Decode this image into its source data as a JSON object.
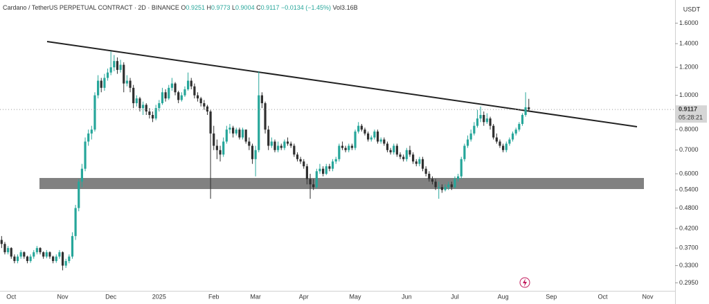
{
  "chart_data": {
    "type": "candlestick",
    "symbol": "Cardano / TetherUS PERPETUAL CONTRACT · 2D · BINANCE",
    "ohlc_keys": [
      "O",
      "H",
      "L",
      "C"
    ],
    "change_label": "−0.0134 (−1.45%)",
    "volume_label": "Vol3.16B",
    "countdown": "05:28:21",
    "axis_unit": "USDT",
    "log_scale": true,
    "grid": false,
    "up_color": "#26a69a",
    "down_color": "#2f2f2f",
    "ylim": [
      0.28,
      1.86
    ],
    "yticks": [
      {
        "value": 1.6,
        "label": "1.6000"
      },
      {
        "value": 1.4,
        "label": "1.4000"
      },
      {
        "value": 1.2,
        "label": "1.2000"
      },
      {
        "value": 1.0,
        "label": "1.0000"
      },
      {
        "value": 0.8,
        "label": "0.8000"
      },
      {
        "value": 0.7,
        "label": "0.7000"
      },
      {
        "value": 0.6,
        "label": "0.6000"
      },
      {
        "value": 0.54,
        "label": "0.5400"
      },
      {
        "value": 0.48,
        "label": "0.4800"
      },
      {
        "value": 0.42,
        "label": "0.4200"
      },
      {
        "value": 0.37,
        "label": "0.3700"
      },
      {
        "value": 0.33,
        "label": "0.3300"
      },
      {
        "value": 0.295,
        "label": "0.2950"
      }
    ],
    "categories": [
      null,
      null,
      null,
      "Oct",
      null,
      null,
      null,
      null,
      null,
      null,
      null,
      null,
      null,
      null,
      null,
      null,
      null,
      null,
      null,
      "Nov",
      null,
      null,
      null,
      null,
      null,
      null,
      null,
      null,
      null,
      null,
      null,
      null,
      null,
      null,
      "Dec",
      null,
      null,
      null,
      null,
      null,
      null,
      null,
      null,
      null,
      null,
      null,
      null,
      null,
      null,
      "2025",
      null,
      null,
      null,
      null,
      null,
      null,
      null,
      null,
      null,
      null,
      null,
      null,
      null,
      null,
      null,
      null,
      "Feb",
      null,
      null,
      null,
      null,
      null,
      null,
      null,
      null,
      null,
      null,
      null,
      null,
      "Mar",
      null,
      null,
      null,
      null,
      null,
      null,
      null,
      null,
      null,
      null,
      null,
      null,
      null,
      null,
      "Apr",
      null,
      null,
      null,
      null,
      null,
      null,
      null,
      null,
      null,
      null,
      null,
      null,
      null,
      null,
      null,
      "May",
      null,
      null,
      null,
      null,
      null,
      null,
      null,
      null,
      null,
      null,
      null,
      null,
      null,
      null,
      null,
      "Jun",
      null,
      null,
      null,
      null,
      null,
      null,
      null,
      null,
      null,
      null,
      null,
      null,
      null,
      null,
      "Jul",
      null,
      null,
      null,
      null,
      null,
      null,
      null,
      null,
      null,
      null,
      null,
      null,
      null,
      null,
      "Aug",
      null,
      null,
      null,
      null,
      null,
      null,
      null,
      null,
      null,
      null,
      null,
      null,
      null,
      null,
      "Sep",
      null,
      null,
      null,
      null,
      null,
      null,
      null,
      null,
      null,
      null,
      null,
      null,
      null,
      null,
      null,
      "Oct",
      null,
      null,
      null,
      null,
      null,
      null,
      null,
      null,
      null,
      null,
      null,
      null,
      null,
      "Nov",
      null,
      null,
      null,
      null,
      null,
      null,
      null,
      null
    ],
    "candles": [
      [
        0.39,
        0.4,
        0.37,
        0.38
      ],
      [
        0.38,
        0.385,
        0.355,
        0.36
      ],
      [
        0.36,
        0.375,
        0.355,
        0.37
      ],
      [
        0.37,
        0.372,
        0.345,
        0.35
      ],
      [
        0.35,
        0.355,
        0.335,
        0.34
      ],
      [
        0.34,
        0.355,
        0.335,
        0.35
      ],
      [
        0.35,
        0.365,
        0.345,
        0.36
      ],
      [
        0.36,
        0.362,
        0.345,
        0.35
      ],
      [
        0.35,
        0.352,
        0.335,
        0.34
      ],
      [
        0.34,
        0.355,
        0.336,
        0.35
      ],
      [
        0.35,
        0.365,
        0.345,
        0.36
      ],
      [
        0.36,
        0.375,
        0.355,
        0.37
      ],
      [
        0.37,
        0.372,
        0.355,
        0.36
      ],
      [
        0.36,
        0.362,
        0.345,
        0.35
      ],
      [
        0.35,
        0.365,
        0.346,
        0.36
      ],
      [
        0.36,
        0.362,
        0.345,
        0.35
      ],
      [
        0.35,
        0.352,
        0.335,
        0.34
      ],
      [
        0.34,
        0.355,
        0.336,
        0.35
      ],
      [
        0.35,
        0.365,
        0.345,
        0.36
      ],
      [
        0.36,
        0.362,
        0.32,
        0.33
      ],
      [
        0.33,
        0.345,
        0.325,
        0.34
      ],
      [
        0.34,
        0.355,
        0.335,
        0.35
      ],
      [
        0.35,
        0.41,
        0.345,
        0.4
      ],
      [
        0.4,
        0.49,
        0.39,
        0.48
      ],
      [
        0.48,
        0.58,
        0.47,
        0.57
      ],
      [
        0.57,
        0.64,
        0.55,
        0.62
      ],
      [
        0.62,
        0.76,
        0.61,
        0.74
      ],
      [
        0.74,
        0.8,
        0.72,
        0.78
      ],
      [
        0.78,
        0.82,
        0.75,
        0.8
      ],
      [
        0.8,
        1.02,
        0.79,
        1.0
      ],
      [
        1.0,
        1.14,
        0.98,
        1.1
      ],
      [
        1.1,
        1.12,
        1.02,
        1.05
      ],
      [
        1.05,
        1.15,
        1.03,
        1.12
      ],
      [
        1.12,
        1.19,
        1.1,
        1.16
      ],
      [
        1.16,
        1.33,
        1.14,
        1.2
      ],
      [
        1.2,
        1.3,
        1.17,
        1.25
      ],
      [
        1.25,
        1.28,
        1.15,
        1.18
      ],
      [
        1.18,
        1.26,
        1.16,
        1.22
      ],
      [
        1.22,
        1.24,
        1.02,
        1.08
      ],
      [
        1.08,
        1.14,
        1.06,
        1.1
      ],
      [
        1.1,
        1.12,
        1.02,
        1.05
      ],
      [
        1.05,
        1.07,
        0.92,
        0.95
      ],
      [
        0.95,
        1.0,
        0.93,
        0.98
      ],
      [
        0.98,
        0.99,
        0.9,
        0.92
      ],
      [
        0.92,
        0.96,
        0.88,
        0.94
      ],
      [
        0.94,
        0.95,
        0.88,
        0.9
      ],
      [
        0.9,
        0.92,
        0.86,
        0.88
      ],
      [
        0.88,
        0.9,
        0.84,
        0.86
      ],
      [
        0.86,
        0.94,
        0.85,
        0.92
      ],
      [
        0.92,
        0.97,
        0.9,
        0.95
      ],
      [
        0.95,
        1.05,
        0.94,
        1.02
      ],
      [
        1.02,
        1.04,
        0.96,
        0.98
      ],
      [
        0.98,
        1.07,
        0.97,
        1.05
      ],
      [
        1.05,
        1.12,
        1.03,
        1.08
      ],
      [
        1.08,
        1.09,
        1.0,
        1.02
      ],
      [
        1.02,
        1.03,
        0.95,
        0.97
      ],
      [
        0.97,
        1.02,
        0.96,
        1.0
      ],
      [
        1.0,
        1.06,
        0.99,
        1.04
      ],
      [
        1.04,
        1.16,
        1.03,
        1.1
      ],
      [
        1.1,
        1.12,
        1.04,
        1.06
      ],
      [
        1.06,
        1.08,
        0.98,
        1.0
      ],
      [
        1.0,
        1.02,
        0.96,
        0.98
      ],
      [
        0.98,
        0.99,
        0.93,
        0.95
      ],
      [
        0.95,
        0.97,
        0.91,
        0.93
      ],
      [
        0.93,
        0.94,
        0.88,
        0.9
      ],
      [
        0.9,
        0.91,
        0.51,
        0.78
      ],
      [
        0.78,
        0.82,
        0.7,
        0.72
      ],
      [
        0.72,
        0.75,
        0.66,
        0.7
      ],
      [
        0.7,
        0.72,
        0.65,
        0.68
      ],
      [
        0.68,
        0.76,
        0.67,
        0.74
      ],
      [
        0.74,
        0.82,
        0.73,
        0.8
      ],
      [
        0.8,
        0.83,
        0.78,
        0.81
      ],
      [
        0.81,
        0.82,
        0.76,
        0.78
      ],
      [
        0.78,
        0.81,
        0.77,
        0.8
      ],
      [
        0.8,
        0.81,
        0.75,
        0.76
      ],
      [
        0.76,
        0.81,
        0.75,
        0.8
      ],
      [
        0.8,
        0.8,
        0.73,
        0.74
      ],
      [
        0.74,
        0.76,
        0.7,
        0.72
      ],
      [
        0.72,
        0.73,
        0.64,
        0.66
      ],
      [
        0.66,
        0.72,
        0.59,
        0.7
      ],
      [
        0.7,
        1.17,
        0.69,
        1.0
      ],
      [
        1.0,
        1.02,
        0.92,
        0.95
      ],
      [
        0.95,
        0.96,
        0.78,
        0.8
      ],
      [
        0.8,
        0.82,
        0.7,
        0.72
      ],
      [
        0.72,
        0.76,
        0.71,
        0.74
      ],
      [
        0.74,
        0.75,
        0.69,
        0.7
      ],
      [
        0.7,
        0.74,
        0.69,
        0.72
      ],
      [
        0.72,
        0.73,
        0.7,
        0.71
      ],
      [
        0.71,
        0.75,
        0.7,
        0.74
      ],
      [
        0.74,
        0.76,
        0.72,
        0.73
      ],
      [
        0.73,
        0.74,
        0.71,
        0.72
      ],
      [
        0.72,
        0.73,
        0.67,
        0.68
      ],
      [
        0.68,
        0.69,
        0.65,
        0.66
      ],
      [
        0.66,
        0.67,
        0.64,
        0.65
      ],
      [
        0.65,
        0.66,
        0.62,
        0.63
      ],
      [
        0.63,
        0.64,
        0.56,
        0.58
      ],
      [
        0.58,
        0.6,
        0.51,
        0.56
      ],
      [
        0.56,
        0.58,
        0.54,
        0.55
      ],
      [
        0.55,
        0.62,
        0.545,
        0.61
      ],
      [
        0.61,
        0.64,
        0.6,
        0.62
      ],
      [
        0.62,
        0.63,
        0.59,
        0.6
      ],
      [
        0.6,
        0.64,
        0.595,
        0.63
      ],
      [
        0.63,
        0.64,
        0.61,
        0.62
      ],
      [
        0.62,
        0.66,
        0.61,
        0.65
      ],
      [
        0.65,
        0.67,
        0.64,
        0.66
      ],
      [
        0.66,
        0.73,
        0.65,
        0.72
      ],
      [
        0.72,
        0.74,
        0.7,
        0.71
      ],
      [
        0.71,
        0.72,
        0.69,
        0.7
      ],
      [
        0.7,
        0.73,
        0.69,
        0.72
      ],
      [
        0.72,
        0.73,
        0.7,
        0.71
      ],
      [
        0.71,
        0.8,
        0.7,
        0.79
      ],
      [
        0.79,
        0.84,
        0.78,
        0.82
      ],
      [
        0.82,
        0.83,
        0.79,
        0.8
      ],
      [
        0.8,
        0.81,
        0.77,
        0.78
      ],
      [
        0.78,
        0.79,
        0.74,
        0.75
      ],
      [
        0.75,
        0.77,
        0.74,
        0.76
      ],
      [
        0.76,
        0.8,
        0.75,
        0.79
      ],
      [
        0.79,
        0.8,
        0.73,
        0.74
      ],
      [
        0.74,
        0.76,
        0.73,
        0.75
      ],
      [
        0.75,
        0.76,
        0.72,
        0.73
      ],
      [
        0.73,
        0.74,
        0.69,
        0.7
      ],
      [
        0.7,
        0.71,
        0.68,
        0.69
      ],
      [
        0.69,
        0.73,
        0.68,
        0.72
      ],
      [
        0.72,
        0.73,
        0.67,
        0.68
      ],
      [
        0.68,
        0.69,
        0.66,
        0.67
      ],
      [
        0.67,
        0.68,
        0.65,
        0.66
      ],
      [
        0.66,
        0.71,
        0.65,
        0.7
      ],
      [
        0.7,
        0.72,
        0.67,
        0.68
      ],
      [
        0.68,
        0.69,
        0.64,
        0.65
      ],
      [
        0.65,
        0.66,
        0.63,
        0.64
      ],
      [
        0.64,
        0.67,
        0.63,
        0.66
      ],
      [
        0.66,
        0.67,
        0.61,
        0.62
      ],
      [
        0.62,
        0.63,
        0.59,
        0.6
      ],
      [
        0.6,
        0.61,
        0.57,
        0.58
      ],
      [
        0.58,
        0.59,
        0.56,
        0.57
      ],
      [
        0.57,
        0.58,
        0.54,
        0.55
      ],
      [
        0.55,
        0.57,
        0.51,
        0.55
      ],
      [
        0.55,
        0.56,
        0.53,
        0.54
      ],
      [
        0.54,
        0.56,
        0.535,
        0.55
      ],
      [
        0.55,
        0.57,
        0.54,
        0.56
      ],
      [
        0.56,
        0.57,
        0.54,
        0.55
      ],
      [
        0.55,
        0.59,
        0.545,
        0.58
      ],
      [
        0.58,
        0.6,
        0.57,
        0.59
      ],
      [
        0.59,
        0.67,
        0.58,
        0.66
      ],
      [
        0.66,
        0.73,
        0.65,
        0.72
      ],
      [
        0.72,
        0.77,
        0.71,
        0.75
      ],
      [
        0.75,
        0.8,
        0.74,
        0.78
      ],
      [
        0.78,
        0.84,
        0.77,
        0.82
      ],
      [
        0.82,
        0.91,
        0.81,
        0.86
      ],
      [
        0.86,
        0.93,
        0.84,
        0.88
      ],
      [
        0.88,
        0.9,
        0.82,
        0.84
      ],
      [
        0.84,
        0.89,
        0.83,
        0.86
      ],
      [
        0.86,
        0.87,
        0.8,
        0.82
      ],
      [
        0.82,
        0.83,
        0.75,
        0.76
      ],
      [
        0.76,
        0.78,
        0.73,
        0.74
      ],
      [
        0.74,
        0.75,
        0.71,
        0.72
      ],
      [
        0.72,
        0.73,
        0.69,
        0.7
      ],
      [
        0.7,
        0.74,
        0.69,
        0.73
      ],
      [
        0.73,
        0.76,
        0.72,
        0.75
      ],
      [
        0.75,
        0.79,
        0.74,
        0.78
      ],
      [
        0.78,
        0.81,
        0.77,
        0.8
      ],
      [
        0.8,
        0.84,
        0.79,
        0.83
      ],
      [
        0.83,
        0.89,
        0.82,
        0.88
      ],
      [
        0.88,
        1.02,
        0.87,
        0.9251
      ],
      [
        0.9251,
        0.9773,
        0.9004,
        0.9117
      ],
      null,
      null,
      null,
      null,
      null,
      null,
      null,
      null,
      null,
      null,
      null,
      null,
      null,
      null,
      null,
      null,
      null,
      null,
      null,
      null,
      null,
      null,
      null,
      null,
      null,
      null,
      null,
      null,
      null,
      null,
      null,
      null,
      null,
      null,
      null,
      null,
      null,
      null,
      null,
      null,
      null,
      null,
      null,
      null,
      null,
      null,
      null,
      null,
      null,
      null
    ]
  }
}
